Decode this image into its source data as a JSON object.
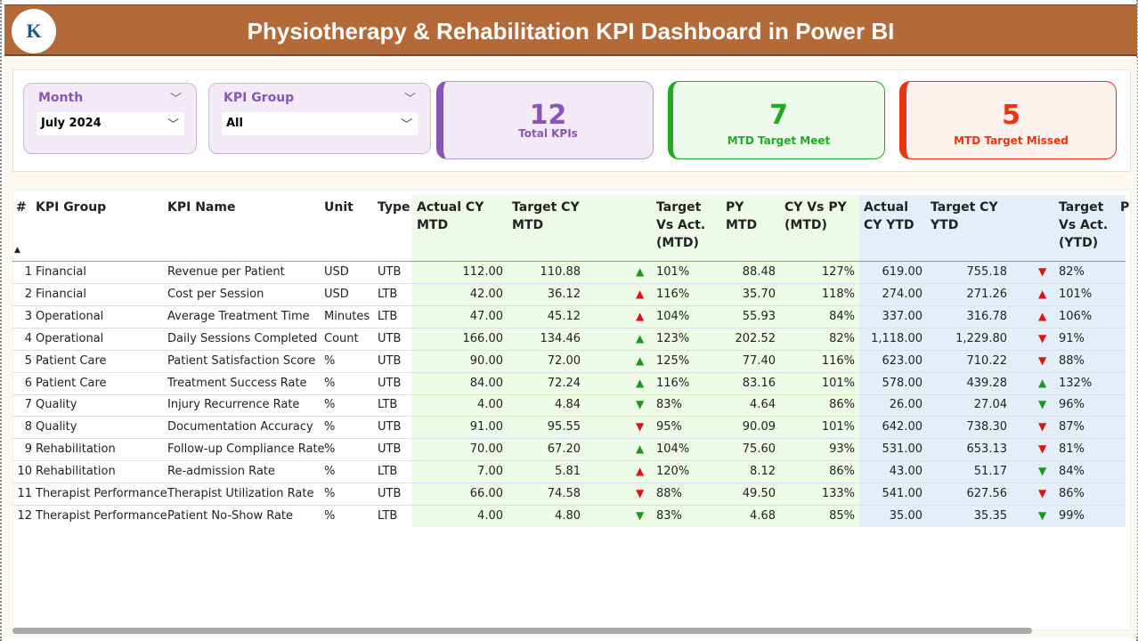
{
  "header": {
    "title": "Physiotherapy & Rehabilitation KPI Dashboard in Power BI",
    "logo_text": "K"
  },
  "slicers": {
    "month": {
      "label": "Month",
      "value": "July 2024"
    },
    "kpi_group": {
      "label": "KPI Group",
      "value": "All"
    }
  },
  "cards": [
    {
      "value": "12",
      "label": "Total KPIs",
      "color": "#8a55b8"
    },
    {
      "value": "7",
      "label": "MTD Target Meet",
      "color": "#22aa22"
    },
    {
      "value": "5",
      "label": "MTD Target Missed",
      "color": "#ee3311"
    }
  ],
  "table": {
    "headers": [
      "#",
      "KPI Group",
      "KPI Name",
      "Unit",
      "Type",
      "Actual CY MTD",
      "Target CY MTD",
      "Target Vs Act. (MTD)",
      "PY MTD",
      "CY Vs PY (MTD)",
      "Actual CY YTD",
      "Target CY YTD",
      "Target Vs Act. (YTD)",
      "P"
    ],
    "rows": [
      [
        "1",
        "Financial",
        "Revenue per Patient",
        "USD",
        "UTB",
        "112.00",
        "110.88",
        "up-green",
        "101%",
        "88.48",
        "127%",
        "619.00",
        "755.18",
        "down-red",
        "82%"
      ],
      [
        "2",
        "Financial",
        "Cost per Session",
        "USD",
        "LTB",
        "42.00",
        "36.12",
        "up-red",
        "116%",
        "35.70",
        "118%",
        "274.00",
        "271.26",
        "up-red",
        "101%"
      ],
      [
        "3",
        "Operational",
        "Average Treatment Time",
        "Minutes",
        "LTB",
        "47.00",
        "45.12",
        "up-red",
        "104%",
        "55.93",
        "84%",
        "337.00",
        "316.78",
        "up-red",
        "106%"
      ],
      [
        "4",
        "Operational",
        "Daily Sessions Completed",
        "Count",
        "UTB",
        "166.00",
        "134.46",
        "up-green",
        "123%",
        "202.52",
        "82%",
        "1,118.00",
        "1,229.80",
        "down-red",
        "91%"
      ],
      [
        "5",
        "Patient Care",
        "Patient Satisfaction Score",
        "%",
        "UTB",
        "90.00",
        "72.00",
        "up-green",
        "125%",
        "77.40",
        "116%",
        "623.00",
        "710.22",
        "down-red",
        "88%"
      ],
      [
        "6",
        "Patient Care",
        "Treatment Success Rate",
        "%",
        "UTB",
        "84.00",
        "72.24",
        "up-green",
        "116%",
        "83.16",
        "101%",
        "578.00",
        "439.28",
        "up-green",
        "132%"
      ],
      [
        "7",
        "Quality",
        "Injury Recurrence Rate",
        "%",
        "LTB",
        "4.00",
        "4.84",
        "down-green",
        "83%",
        "4.64",
        "86%",
        "26.00",
        "27.04",
        "down-green",
        "96%"
      ],
      [
        "8",
        "Quality",
        "Documentation Accuracy",
        "%",
        "UTB",
        "91.00",
        "95.55",
        "down-red",
        "95%",
        "90.09",
        "101%",
        "642.00",
        "738.30",
        "down-red",
        "87%"
      ],
      [
        "9",
        "Rehabilitation",
        "Follow-up Compliance Rate",
        "%",
        "UTB",
        "70.00",
        "67.20",
        "up-green",
        "104%",
        "75.60",
        "93%",
        "531.00",
        "653.13",
        "down-red",
        "81%"
      ],
      [
        "10",
        "Rehabilitation",
        "Re-admission Rate",
        "%",
        "LTB",
        "7.00",
        "5.81",
        "up-red",
        "120%",
        "8.12",
        "86%",
        "43.00",
        "51.17",
        "down-green",
        "84%"
      ],
      [
        "11",
        "Therapist Performance",
        "Therapist Utilization Rate",
        "%",
        "UTB",
        "66.00",
        "74.58",
        "down-red",
        "88%",
        "49.50",
        "133%",
        "541.00",
        "627.56",
        "down-red",
        "86%"
      ],
      [
        "12",
        "Therapist Performance",
        "Patient No-Show Rate",
        "%",
        "LTB",
        "4.00",
        "4.80",
        "down-green",
        "83%",
        "4.68",
        "85%",
        "35.00",
        "35.35",
        "down-green",
        "99%"
      ]
    ]
  },
  "colors": {
    "green": "#1a9a1a",
    "red": "#e01010",
    "header_bg": "#b36a38"
  }
}
